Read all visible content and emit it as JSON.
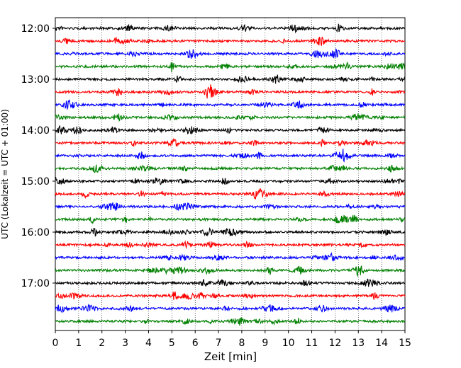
{
  "chart_data": {
    "type": "line",
    "subtype": "helicorder",
    "title": "",
    "xlabel": "Zeit  [min]",
    "ylabel": "UTC (Lokalzeit = UTC + 01:00)",
    "xlim": [
      0,
      15
    ],
    "x_ticks": [
      "0",
      "1",
      "2",
      "3",
      "4",
      "5",
      "6",
      "7",
      "8",
      "9",
      "10",
      "11",
      "12",
      "13",
      "14",
      "15"
    ],
    "y_ticks": [
      "12:00",
      "13:00",
      "14:00",
      "15:00",
      "16:00",
      "17:00"
    ],
    "grid": "vertical dotted lines at each minute",
    "trace_interval_minutes": 15,
    "start_time": "12:00",
    "trace_count": 24,
    "trace_colors": [
      "#000000",
      "#ff0000",
      "#0000ff",
      "#008000"
    ]
  }
}
